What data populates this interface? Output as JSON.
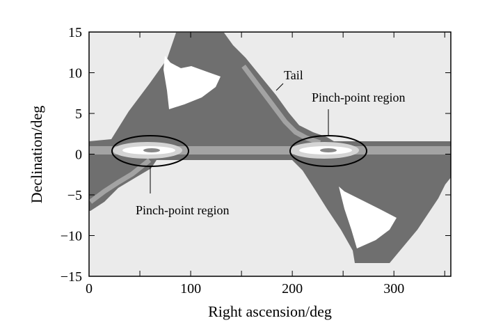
{
  "chart_data": {
    "type": "heatmap",
    "title": "",
    "xlabel": "Right ascension/deg",
    "ylabel": "Declination/deg",
    "xlim": [
      0,
      356
    ],
    "ylim": [
      -15,
      15
    ],
    "xticks": [
      0,
      100,
      200,
      300
    ],
    "xticks_minor": [
      50,
      150,
      250,
      350
    ],
    "yticks": [
      15,
      10,
      5,
      0,
      -5,
      -10,
      -15
    ],
    "ytick_labels": [
      "15",
      "10",
      "5",
      "0",
      "−5",
      "−10",
      "−15"
    ],
    "grid": false,
    "annotations": [
      {
        "text": "Tail",
        "ra": 192,
        "dec": 8.5
      },
      {
        "text": "Pinch-point region",
        "ra": 235,
        "dec": 7
      },
      {
        "text": "Pinch-point region",
        "ra": 60,
        "dec": -6.5
      }
    ],
    "highlighted_regions": [
      {
        "label": "Pinch-point region",
        "ra_center": 60,
        "dec_center": 0.5
      },
      {
        "label": "Pinch-point region",
        "ra_center": 240,
        "dec_center": 0.5
      }
    ],
    "colors": {
      "background": "#ebebeb",
      "level1": "#6f6f6f",
      "level2": "#a3a3a3",
      "level3": "#d4d4d4",
      "peak": "#ffffff"
    }
  }
}
